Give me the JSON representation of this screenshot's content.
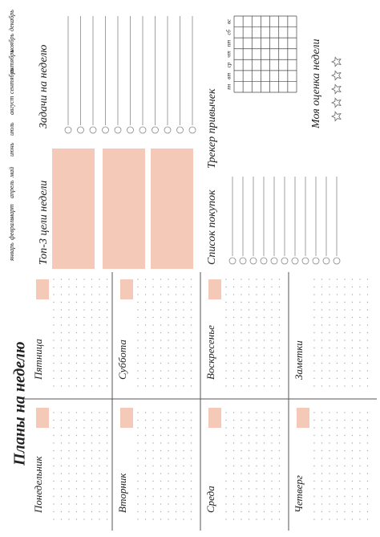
{
  "title": "Планы на неделю",
  "days": [
    "Понедельник",
    "Вторник",
    "Среда",
    "Четверг",
    "Пятница",
    "Суббота",
    "Воскресенье",
    "Заметки"
  ],
  "sections": {
    "tasks": "Задачи на неделю",
    "goals": "Топ-3 цели недели",
    "tracker": "Трекер привычек",
    "shopping": "Список покупок",
    "rating": "Моя оценка недели"
  },
  "months": [
    "январь",
    "февраль",
    "март",
    "апрель",
    "май",
    "июнь",
    "июль",
    "август",
    "сентябрь",
    "октябрь",
    "ноябрь",
    "декабрь"
  ],
  "weekdays": [
    "пн",
    "вт",
    "ср",
    "чт",
    "пт",
    "сб",
    "вс"
  ]
}
